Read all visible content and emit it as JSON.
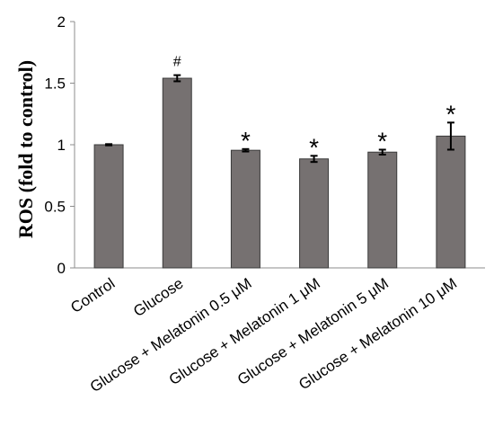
{
  "chart_data": {
    "type": "bar",
    "ylabel": "ROS (fold to control)",
    "ylim": [
      0,
      2
    ],
    "yticks": [
      "0",
      "0.5",
      "1",
      "1.5",
      "2"
    ],
    "ytick_values": [
      0,
      0.5,
      1,
      1.5,
      2
    ],
    "categories": [
      "Control",
      "Glucose",
      "Glucose + Melatonin 0.5 μM",
      "Glucose + Melatonin 1 μM",
      "Glucose + Melatonin 5 μM",
      "Glucose + Melatonin 10 μM"
    ],
    "values": [
      1.0,
      1.54,
      0.955,
      0.885,
      0.94,
      1.07
    ],
    "errors": [
      0.005,
      0.025,
      0.01,
      0.025,
      0.02,
      0.11
    ],
    "annotations": [
      "",
      "#",
      "*",
      "*",
      "*",
      "*"
    ],
    "bar_color": "#767171",
    "grid": false,
    "legend": "none"
  }
}
